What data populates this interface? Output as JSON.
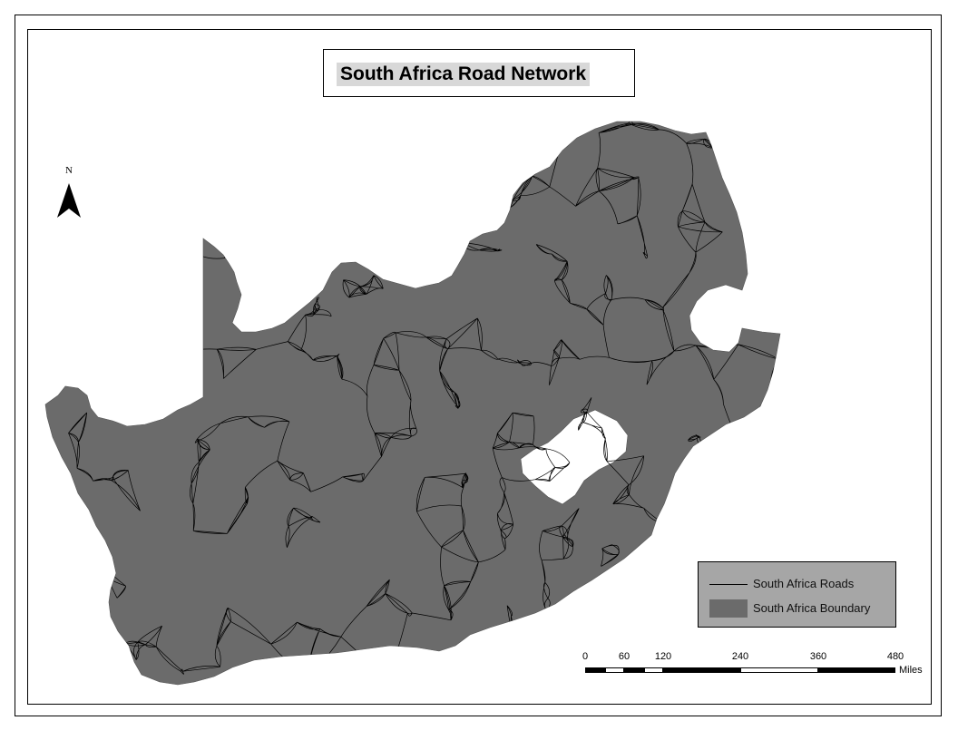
{
  "map": {
    "title": "South Africa Road Network",
    "north_label": "N",
    "colors": {
      "land": "#6b6b6b",
      "roads": "#000000",
      "legend_background": "#a6a6a6",
      "title_highlight": "#d8d8d8"
    },
    "legend": {
      "items": [
        {
          "label": "South Africa Roads",
          "symbol": "line"
        },
        {
          "label": "South Africa Boundary",
          "symbol": "polygon"
        }
      ]
    },
    "scale_bar": {
      "ticks": [
        "0",
        "60",
        "120",
        "240",
        "360",
        "480"
      ],
      "unit": "Miles"
    },
    "icons": {
      "north_arrow": "north-arrow-icon"
    }
  }
}
